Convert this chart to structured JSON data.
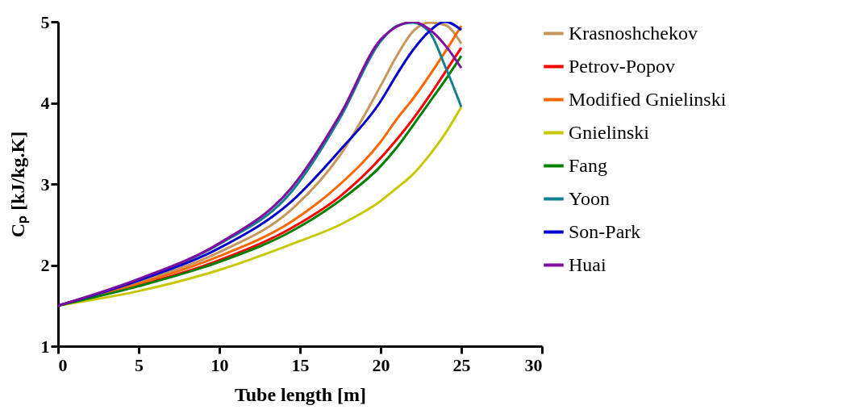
{
  "chart_data": {
    "type": "line",
    "xlabel": "Tube length [m]",
    "ylabel": "Cₚ [kJ/kg.K]",
    "x": [
      0,
      5,
      10,
      14.5,
      17.5,
      20,
      21,
      22,
      23,
      24,
      25
    ],
    "xlim": [
      0,
      30
    ],
    "xticks": [
      0,
      5,
      10,
      15,
      20,
      25,
      30
    ],
    "ylim": [
      1,
      5
    ],
    "yticks": [
      1,
      2,
      3,
      4,
      5
    ],
    "grid": false,
    "legend": "right",
    "series": [
      {
        "name": "Krasnoshchekov",
        "color": "#c8965a",
        "values": [
          1.5,
          1.79,
          2.16,
          2.69,
          3.36,
          4.21,
          4.58,
          4.88,
          4.99,
          4.96,
          4.73
        ]
      },
      {
        "name": "Petrov-Popov",
        "color": "#ff0000",
        "values": [
          1.5,
          1.75,
          2.06,
          2.46,
          2.85,
          3.32,
          3.55,
          3.8,
          4.08,
          4.38,
          4.68
        ]
      },
      {
        "name": "Modified Gnielinski",
        "color": "#ff6600",
        "values": [
          1.5,
          1.77,
          2.11,
          2.54,
          3.0,
          3.52,
          3.8,
          4.05,
          4.33,
          4.63,
          4.95
        ]
      },
      {
        "name": "Gnielinski",
        "color": "#c8c800",
        "values": [
          1.5,
          1.68,
          1.94,
          2.26,
          2.5,
          2.79,
          2.95,
          3.12,
          3.35,
          3.62,
          3.95
        ]
      },
      {
        "name": "Fang",
        "color": "#008000",
        "values": [
          1.5,
          1.74,
          2.04,
          2.42,
          2.8,
          3.22,
          3.45,
          3.72,
          4.0,
          4.28,
          4.58
        ]
      },
      {
        "name": "Yoon",
        "color": "#13808f",
        "values": [
          1.5,
          1.82,
          2.26,
          2.91,
          3.82,
          4.76,
          4.95,
          4.99,
          4.88,
          4.45,
          3.95
        ]
      },
      {
        "name": "Son-Park",
        "color": "#0000cc",
        "values": [
          1.5,
          1.81,
          2.21,
          2.79,
          3.42,
          4.02,
          4.35,
          4.65,
          4.88,
          5.0,
          4.9
        ]
      },
      {
        "name": "Huai",
        "color": "#7f0fa0",
        "values": [
          1.5,
          1.83,
          2.27,
          2.96,
          3.86,
          4.78,
          4.94,
          5.0,
          4.91,
          4.71,
          4.43
        ]
      }
    ]
  }
}
